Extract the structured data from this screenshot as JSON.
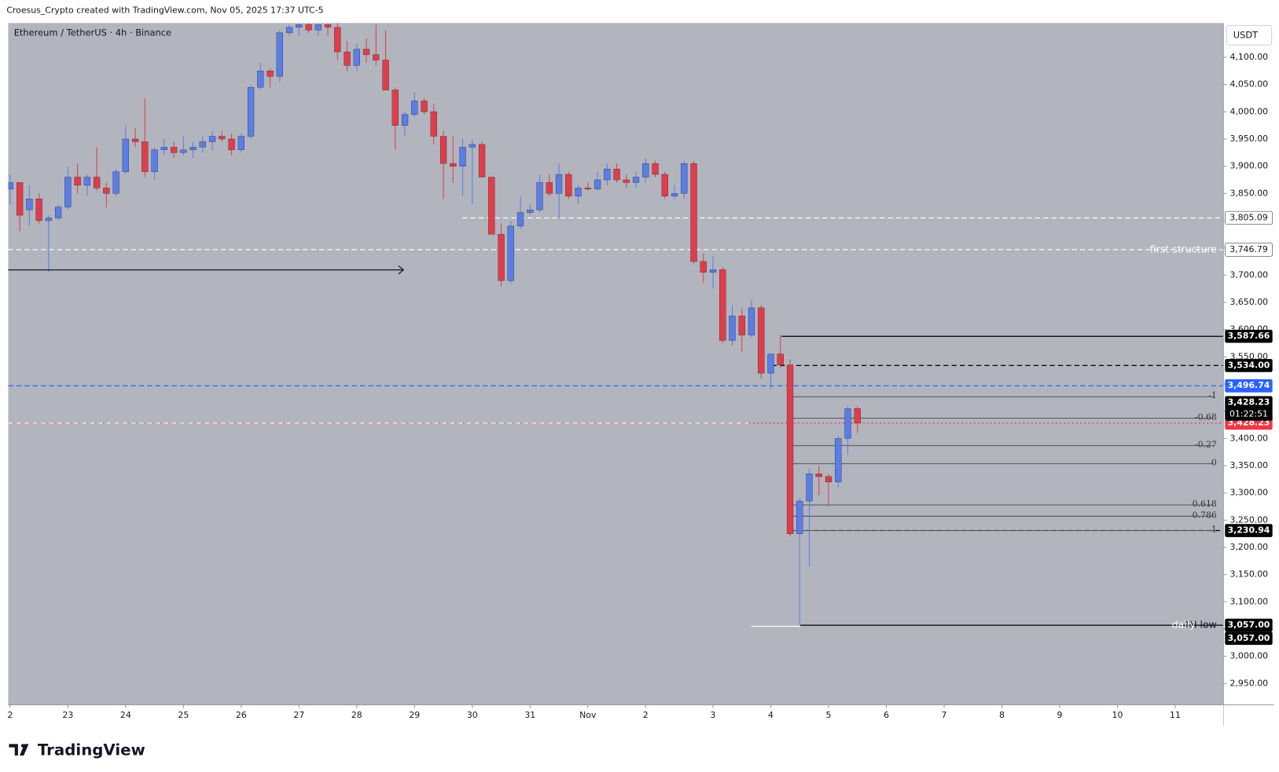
{
  "header": {
    "credit": "Croesus_Crypto created with TradingView.com, Nov 05, 2025 17:37 UTC-5",
    "brand": "TradingView"
  },
  "chart_data": {
    "type": "candlestick",
    "title": "Ethereum / TetherUS · 4h · Binance",
    "currency": "USDT",
    "up_color": "#5b7de6",
    "down_color": "#e03d4a",
    "ylim": [
      2910.8,
      4163
    ],
    "yticks": [
      {
        "value": 2950,
        "label": "2,950.00"
      },
      {
        "value": 3000,
        "label": "3,000.00"
      },
      {
        "value": 3050,
        "label": "3,050.00"
      },
      {
        "value": 3100,
        "label": "3,100.00"
      },
      {
        "value": 3150,
        "label": "3,150.00"
      },
      {
        "value": 3200,
        "label": "3,200.00"
      },
      {
        "value": 3250,
        "label": "3,250.00"
      },
      {
        "value": 3300,
        "label": "3,300.00"
      },
      {
        "value": 3350,
        "label": "3,350.00"
      },
      {
        "value": 3400,
        "label": "3,400.00"
      },
      {
        "value": 3450,
        "label": "3,450.00"
      },
      {
        "value": 3500,
        "label": "3,500.00"
      },
      {
        "value": 3550,
        "label": "3,550.00"
      },
      {
        "value": 3600,
        "label": "3,600.00"
      },
      {
        "value": 3650,
        "label": "3,650.00"
      },
      {
        "value": 3700,
        "label": "3,700.00"
      },
      {
        "value": 3750,
        "label": "3,750.00"
      },
      {
        "value": 3800,
        "label": "3,800.00"
      },
      {
        "value": 3850,
        "label": "3,850.00"
      },
      {
        "value": 3900,
        "label": "3,900.00"
      },
      {
        "value": 3950,
        "label": "3,950.00"
      },
      {
        "value": 4000,
        "label": "4,000.00"
      },
      {
        "value": 4050,
        "label": "4,050.00"
      },
      {
        "value": 4100,
        "label": "4,100.00"
      }
    ],
    "xlim": [
      -0.2,
      126
    ],
    "xticks": [
      {
        "value": 0,
        "label": "2"
      },
      {
        "value": 6,
        "label": "23"
      },
      {
        "value": 12,
        "label": "24"
      },
      {
        "value": 18,
        "label": "25"
      },
      {
        "value": 24,
        "label": "26"
      },
      {
        "value": 30,
        "label": "27"
      },
      {
        "value": 36,
        "label": "28"
      },
      {
        "value": 42,
        "label": "29"
      },
      {
        "value": 48,
        "label": "30"
      },
      {
        "value": 54,
        "label": "31"
      },
      {
        "value": 60,
        "label": "Nov"
      },
      {
        "value": 66,
        "label": "2"
      },
      {
        "value": 73,
        "label": "3"
      },
      {
        "value": 79,
        "label": "4"
      },
      {
        "value": 85,
        "label": "5"
      },
      {
        "value": 91,
        "label": "6"
      },
      {
        "value": 97,
        "label": "7"
      },
      {
        "value": 103,
        "label": "8"
      },
      {
        "value": 109,
        "label": "9"
      },
      {
        "value": 115,
        "label": "10"
      },
      {
        "value": 121,
        "label": "11"
      }
    ],
    "ohlc": [
      [
        3858,
        3885,
        3830,
        3870
      ],
      [
        3870,
        3870,
        3780,
        3810
      ],
      [
        3820,
        3865,
        3790,
        3840
      ],
      [
        3840,
        3850,
        3795,
        3800
      ],
      [
        3800,
        3810,
        3705,
        3805
      ],
      [
        3805,
        3830,
        3800,
        3825
      ],
      [
        3825,
        3900,
        3820,
        3880
      ],
      [
        3880,
        3905,
        3850,
        3865
      ],
      [
        3865,
        3885,
        3845,
        3880
      ],
      [
        3880,
        3935,
        3855,
        3860
      ],
      [
        3860,
        3870,
        3825,
        3850
      ],
      [
        3850,
        3895,
        3845,
        3890
      ],
      [
        3890,
        3975,
        3885,
        3950
      ],
      [
        3950,
        3970,
        3935,
        3945
      ],
      [
        3945,
        4025,
        3880,
        3890
      ],
      [
        3890,
        3935,
        3875,
        3930
      ],
      [
        3930,
        3950,
        3920,
        3935
      ],
      [
        3935,
        3945,
        3915,
        3925
      ],
      [
        3925,
        3955,
        3920,
        3930
      ],
      [
        3930,
        3945,
        3915,
        3935
      ],
      [
        3935,
        3955,
        3925,
        3945
      ],
      [
        3945,
        3965,
        3930,
        3955
      ],
      [
        3955,
        3965,
        3945,
        3950
      ],
      [
        3950,
        3960,
        3920,
        3930
      ],
      [
        3930,
        3960,
        3925,
        3955
      ],
      [
        3955,
        4050,
        3950,
        4045
      ],
      [
        4045,
        4090,
        4040,
        4075
      ],
      [
        4075,
        4080,
        4045,
        4065
      ],
      [
        4065,
        4150,
        4055,
        4145
      ],
      [
        4145,
        4160,
        4140,
        4155
      ],
      [
        4155,
        4170,
        4140,
        4160
      ],
      [
        4160,
        4175,
        4145,
        4150
      ],
      [
        4150,
        4170,
        4140,
        4160
      ],
      [
        4160,
        4175,
        4140,
        4155
      ],
      [
        4155,
        4165,
        4095,
        4110
      ],
      [
        4110,
        4130,
        4075,
        4085
      ],
      [
        4085,
        4125,
        4075,
        4115
      ],
      [
        4115,
        4135,
        4090,
        4105
      ],
      [
        4105,
        4160,
        4085,
        4095
      ],
      [
        4095,
        4150,
        4040,
        4040
      ],
      [
        4040,
        4045,
        3930,
        3975
      ],
      [
        3975,
        4000,
        3955,
        3995
      ],
      [
        3995,
        4035,
        3990,
        4020
      ],
      [
        4020,
        4025,
        3995,
        4000
      ],
      [
        4000,
        4015,
        3940,
        3955
      ],
      [
        3955,
        3965,
        3840,
        3905
      ],
      [
        3905,
        3955,
        3870,
        3900
      ],
      [
        3900,
        3950,
        3845,
        3935
      ],
      [
        3935,
        3950,
        3830,
        3940
      ],
      [
        3940,
        3945,
        3880,
        3880
      ],
      [
        3880,
        3880,
        3775,
        3775
      ],
      [
        3775,
        3795,
        3680,
        3690
      ],
      [
        3690,
        3800,
        3685,
        3790
      ],
      [
        3790,
        3845,
        3785,
        3815
      ],
      [
        3815,
        3830,
        3810,
        3820
      ],
      [
        3820,
        3885,
        3815,
        3870
      ],
      [
        3870,
        3885,
        3845,
        3850
      ],
      [
        3850,
        3905,
        3805,
        3885
      ],
      [
        3885,
        3890,
        3840,
        3845
      ],
      [
        3845,
        3865,
        3830,
        3860
      ],
      [
        3860,
        3870,
        3855,
        3858
      ],
      [
        3858,
        3890,
        3855,
        3875
      ],
      [
        3875,
        3905,
        3865,
        3895
      ],
      [
        3895,
        3905,
        3870,
        3875
      ],
      [
        3875,
        3885,
        3860,
        3870
      ],
      [
        3870,
        3890,
        3860,
        3880
      ],
      [
        3880,
        3915,
        3870,
        3905
      ],
      [
        3905,
        3910,
        3880,
        3885
      ],
      [
        3885,
        3890,
        3840,
        3845
      ],
      [
        3845,
        3865,
        3840,
        3850
      ],
      [
        3850,
        3910,
        3840,
        3905
      ],
      [
        3905,
        3910,
        3720,
        3725
      ],
      [
        3725,
        3740,
        3685,
        3705
      ],
      [
        3705,
        3735,
        3675,
        3710
      ],
      [
        3710,
        3715,
        3575,
        3580
      ],
      [
        3580,
        3645,
        3570,
        3625
      ],
      [
        3625,
        3640,
        3560,
        3590
      ],
      [
        3590,
        3655,
        3585,
        3640
      ],
      [
        3640,
        3645,
        3510,
        3520
      ],
      [
        3520,
        3555,
        3490,
        3555
      ],
      [
        3555,
        3590,
        3530,
        3535
      ],
      [
        3535,
        3545,
        3220,
        3225
      ],
      [
        3225,
        3290,
        3057,
        3285
      ],
      [
        3285,
        3345,
        3165,
        3335
      ],
      [
        3335,
        3350,
        3295,
        3330
      ],
      [
        3330,
        3335,
        3275,
        3320
      ],
      [
        3320,
        3405,
        3310,
        3400
      ],
      [
        3400,
        3460,
        3370,
        3455
      ],
      [
        3455,
        3460,
        3410,
        3428.23
      ]
    ],
    "levels": [
      {
        "value": 3805.09,
        "label": "3,805.09",
        "color": "#ffffff",
        "style": "dashed"
      },
      {
        "value": 3746.79,
        "label": "3,746.79",
        "color": "#ffffff",
        "style": "dashed",
        "note": "first structure"
      },
      {
        "value": 3587.66,
        "label": "3,587.66",
        "color": "#000000",
        "style": "solid"
      },
      {
        "value": 3534.0,
        "label": "3,534.00",
        "color": "#000000",
        "style": "dashed"
      },
      {
        "value": 3496.74,
        "label": "3,496.74",
        "color": "#2962ff",
        "style": "dashed"
      },
      {
        "value": 3428.23,
        "label": "3,428.23",
        "color": "#f23645",
        "style": "dotted"
      },
      {
        "value": 3230.94,
        "label": "3,230.94",
        "color": "#000000",
        "style": "dashed"
      },
      {
        "value": 3057.0,
        "label": "3,057.00",
        "color": "#000000",
        "style": "solid",
        "note": "4H low",
        "note2": "daily"
      }
    ],
    "last_price": {
      "value": 3428.23,
      "label": "3,428.23",
      "countdown": "01:22:51"
    },
    "low_tag": {
      "value": 3057.0,
      "label": "3,057.00"
    },
    "fib": [
      {
        "value": 3476.5,
        "label": "-1"
      },
      {
        "value": 3437.2,
        "label": "-0.68"
      },
      {
        "value": 3386.9,
        "label": "-0.27"
      },
      {
        "value": 3353.7,
        "label": "0"
      },
      {
        "value": 3277.8,
        "label": "0.618"
      },
      {
        "value": 3257.2,
        "label": "0.786"
      },
      {
        "value": 3230.94,
        "label": "1"
      }
    ]
  }
}
